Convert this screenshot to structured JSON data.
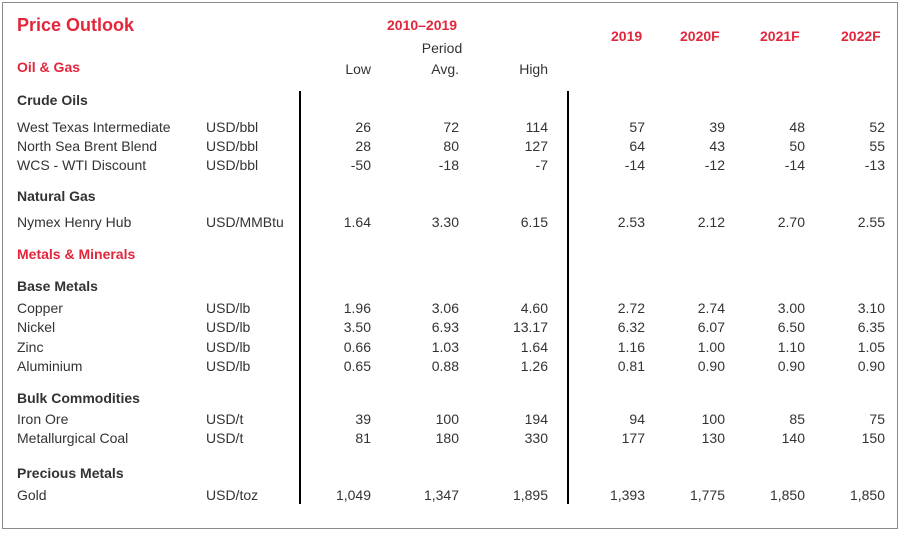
{
  "title": "Price Outlook",
  "header": {
    "period_range": "2010–2019",
    "period_label": "Period",
    "low": "Low",
    "avg": "Avg.",
    "high": "High",
    "years": [
      "2019",
      "2020F",
      "2021F",
      "2022F"
    ]
  },
  "sections": {
    "oil_gas": "Oil & Gas",
    "metals": "Metals & Minerals"
  },
  "groups": {
    "crude": "Crude Oils",
    "natgas": "Natural Gas",
    "base": "Base Metals",
    "bulk": "Bulk Commodities",
    "precious": "Precious Metals"
  },
  "rows": [
    {
      "name": "West Texas Intermediate",
      "unit": "USD/bbl",
      "low": "26",
      "avg": "72",
      "high": "114",
      "y2019": "57",
      "y2020": "39",
      "y2021": "48",
      "y2022": "52"
    },
    {
      "name": "North Sea Brent Blend",
      "unit": "USD/bbl",
      "low": "28",
      "avg": "80",
      "high": "127",
      "y2019": "64",
      "y2020": "43",
      "y2021": "50",
      "y2022": "55"
    },
    {
      "name": "WCS - WTI Discount",
      "unit": "USD/bbl",
      "low": "-50",
      "avg": "-18",
      "high": "-7",
      "y2019": "-14",
      "y2020": "-12",
      "y2021": "-14",
      "y2022": "-13"
    },
    {
      "name": "Nymex Henry Hub",
      "unit": "USD/MMBtu",
      "low": "1.64",
      "avg": "3.30",
      "high": "6.15",
      "y2019": "2.53",
      "y2020": "2.12",
      "y2021": "2.70",
      "y2022": "2.55"
    },
    {
      "name": "Copper",
      "unit": "USD/lb",
      "low": "1.96",
      "avg": "3.06",
      "high": "4.60",
      "y2019": "2.72",
      "y2020": "2.74",
      "y2021": "3.00",
      "y2022": "3.10"
    },
    {
      "name": "Nickel",
      "unit": "USD/lb",
      "low": "3.50",
      "avg": "6.93",
      "high": "13.17",
      "y2019": "6.32",
      "y2020": "6.07",
      "y2021": "6.50",
      "y2022": "6.35"
    },
    {
      "name": "Zinc",
      "unit": "USD/lb",
      "low": "0.66",
      "avg": "1.03",
      "high": "1.64",
      "y2019": "1.16",
      "y2020": "1.00",
      "y2021": "1.10",
      "y2022": "1.05"
    },
    {
      "name": "Aluminium",
      "unit": "USD/lb",
      "low": "0.65",
      "avg": "0.88",
      "high": "1.26",
      "y2019": "0.81",
      "y2020": "0.90",
      "y2021": "0.90",
      "y2022": "0.90"
    },
    {
      "name": "Iron Ore",
      "unit": "USD/t",
      "low": "39",
      "avg": "100",
      "high": "194",
      "y2019": "94",
      "y2020": "100",
      "y2021": "85",
      "y2022": "75"
    },
    {
      "name": "Metallurgical Coal",
      "unit": "USD/t",
      "low": "81",
      "avg": "180",
      "high": "330",
      "y2019": "177",
      "y2020": "130",
      "y2021": "140",
      "y2022": "150"
    },
    {
      "name": "Gold",
      "unit": "USD/toz",
      "low": "1,049",
      "avg": "1,347",
      "high": "1,895",
      "y2019": "1,393",
      "y2020": "1,775",
      "y2021": "1,850",
      "y2022": "1,850"
    }
  ]
}
